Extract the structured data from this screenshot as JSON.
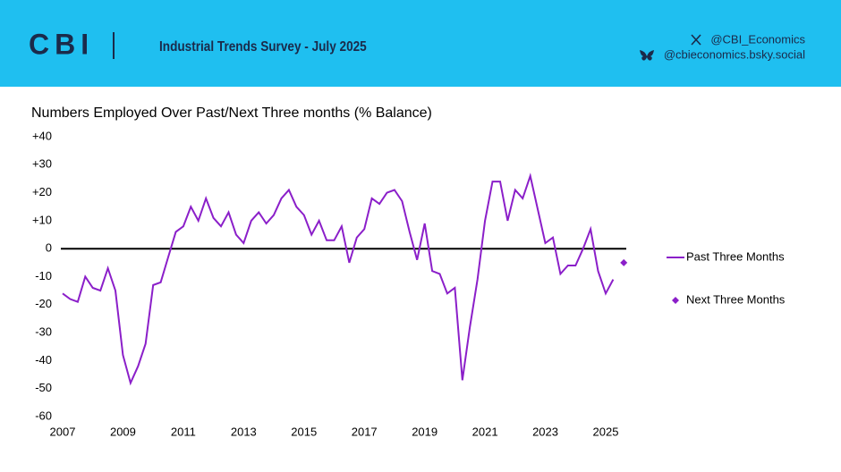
{
  "header": {
    "logo": "CBI",
    "title": "Industrial Trends Survey - July 2025",
    "x_handle": "@CBI_Economics",
    "bsky_handle": "@cbieconomics.bsky.social"
  },
  "chart_data": {
    "type": "line",
    "title": "Numbers Employed Over Past/Next Three months (% Balance)",
    "xlim": [
      2007,
      2026
    ],
    "xticks": [
      2007,
      2009,
      2011,
      2013,
      2015,
      2017,
      2019,
      2021,
      2023,
      2025
    ],
    "ylim": [
      -60,
      40
    ],
    "yticks": [
      {
        "value": 40,
        "label": "+40"
      },
      {
        "value": 30,
        "label": "+30"
      },
      {
        "value": 20,
        "label": "+20"
      },
      {
        "value": 10,
        "label": "+10"
      },
      0,
      -10,
      -20,
      -30,
      -40,
      -50,
      -60
    ],
    "zero_line": true,
    "legend": "right",
    "series": [
      {
        "name": "Past Three Months",
        "color": "#8b1fc9",
        "marker": "line",
        "x": [
          2007,
          2007.25,
          2007.5,
          2007.75,
          2008,
          2008.25,
          2008.5,
          2008.75,
          2009,
          2009.25,
          2009.5,
          2009.75,
          2010,
          2010.25,
          2010.5,
          2010.75,
          2011,
          2011.25,
          2011.5,
          2011.75,
          2012,
          2012.25,
          2012.5,
          2012.75,
          2013,
          2013.25,
          2013.5,
          2013.75,
          2014,
          2014.25,
          2014.5,
          2014.75,
          2015,
          2015.25,
          2015.5,
          2015.75,
          2016,
          2016.25,
          2016.5,
          2016.75,
          2017,
          2017.25,
          2017.5,
          2017.75,
          2018,
          2018.25,
          2018.5,
          2018.75,
          2019,
          2019.25,
          2019.5,
          2019.75,
          2020,
          2020.25,
          2020.5,
          2020.75,
          2021,
          2021.25,
          2021.5,
          2021.75,
          2022,
          2022.25,
          2022.5,
          2022.75,
          2023,
          2023.25,
          2023.5,
          2023.75,
          2024,
          2024.25,
          2024.5,
          2024.75,
          2025,
          2025.25
        ],
        "values": [
          -16,
          -18,
          -19,
          -10,
          -14,
          -15,
          -7,
          -15,
          -38,
          -48,
          -42,
          -34,
          -13,
          -12,
          -3,
          6,
          8,
          15,
          10,
          18,
          11,
          8,
          13,
          5,
          2,
          10,
          13,
          9,
          12,
          18,
          21,
          15,
          12,
          5,
          10,
          3,
          3,
          8,
          -5,
          4,
          7,
          18,
          16,
          20,
          21,
          17,
          6,
          -4,
          9,
          -8,
          -9,
          -16,
          -14,
          -47,
          -28,
          -11,
          10,
          24,
          24,
          10,
          21,
          18,
          26,
          14,
          2,
          4,
          -9,
          -6,
          -6,
          0,
          7,
          -8,
          -16,
          -11
        ]
      },
      {
        "name": "Next Three Months",
        "color": "#8b1fc9",
        "marker": "diamond",
        "x": [
          2025.6
        ],
        "values": [
          -5
        ]
      }
    ]
  }
}
